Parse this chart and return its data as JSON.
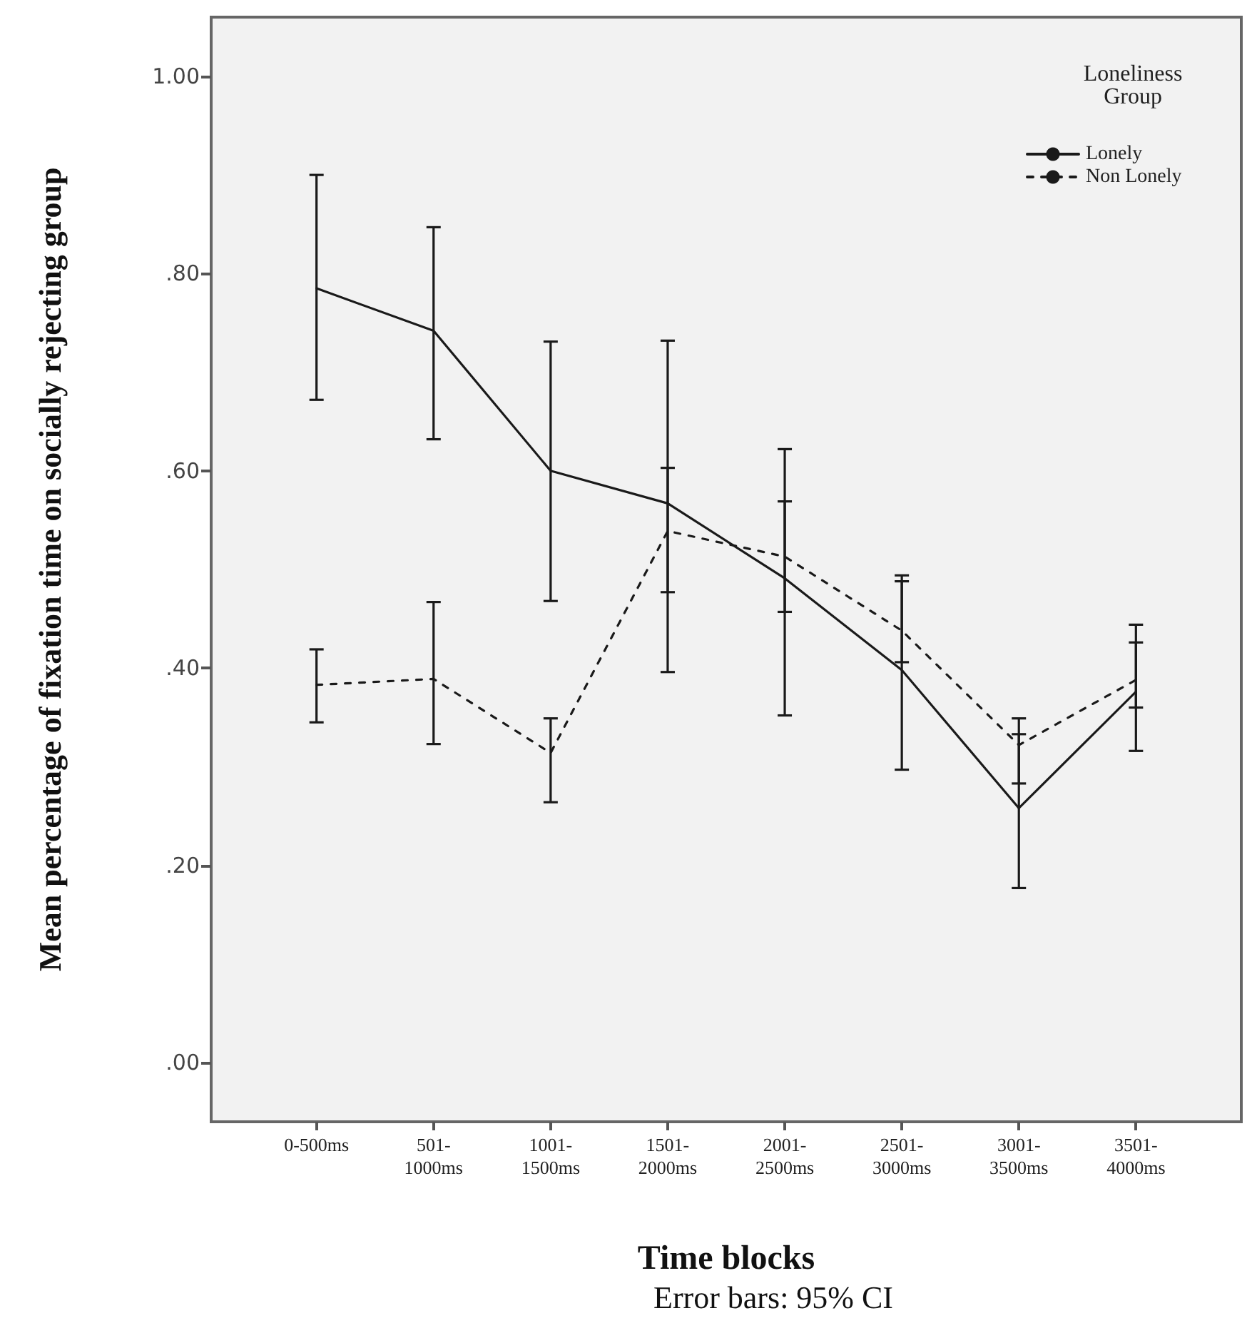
{
  "chart_data": {
    "type": "line",
    "xlabel": "Time blocks",
    "ylabel": "Mean percentage of fixation time on socially rejecting group",
    "legend_title": "Loneliness Group",
    "annotations": [
      "Error bars: 95% CI"
    ],
    "categories": [
      "0-500ms",
      "501-1000ms",
      "1001-1500ms",
      "1501-2000ms",
      "2001-2500ms",
      "2501-3000ms",
      "3001-3500ms",
      "3501-4000ms"
    ],
    "series": [
      {
        "name": "Lonely",
        "color": "#1a1a1a",
        "line_style": "solid",
        "values": [
          0.785,
          0.742,
          0.6,
          0.567,
          0.491,
          0.398,
          0.258,
          0.376
        ],
        "errors": [
          [
            0.672,
            0.9
          ],
          [
            0.632,
            0.847
          ],
          [
            0.468,
            0.731
          ],
          [
            0.396,
            0.732
          ],
          [
            0.352,
            0.622
          ],
          [
            0.297,
            0.488
          ],
          [
            0.177,
            0.333
          ],
          [
            0.316,
            0.444
          ]
        ]
      },
      {
        "name": "Non Lonely",
        "color": "#1a1a1a",
        "line_style": "dashed",
        "values": [
          0.383,
          0.389,
          0.314,
          0.539,
          0.513,
          0.438,
          0.322,
          0.388
        ],
        "errors": [
          [
            0.345,
            0.419
          ],
          [
            0.323,
            0.467
          ],
          [
            0.264,
            0.349
          ],
          [
            0.477,
            0.603
          ],
          [
            0.457,
            0.569
          ],
          [
            0.406,
            0.494
          ],
          [
            0.283,
            0.349
          ],
          [
            0.36,
            0.426
          ]
        ]
      }
    ],
    "ylim": [
      -0.06,
      1.06
    ],
    "yticks": [
      {
        "value": 0,
        "label": ".00"
      },
      {
        "value": 0.2,
        "label": ".20"
      },
      {
        "value": 0.4,
        "label": ".40"
      },
      {
        "value": 0.6,
        "label": ".60"
      },
      {
        "value": 0.8,
        "label": ".80"
      },
      {
        "value": 1.0,
        "label": "1.00"
      }
    ],
    "grid": false,
    "legend": "top right",
    "marker": "none"
  }
}
